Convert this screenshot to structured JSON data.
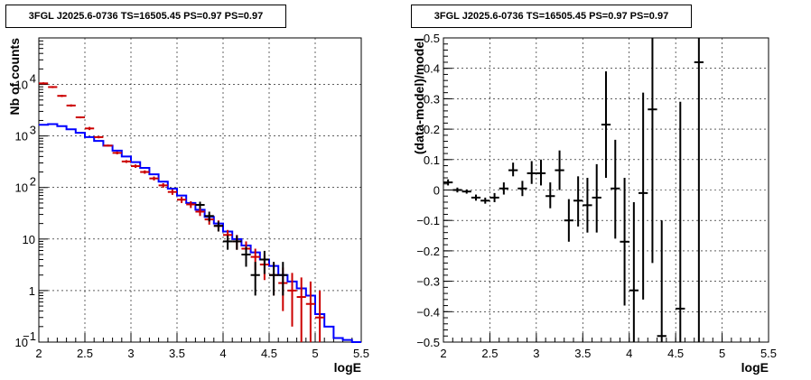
{
  "chart_data": [
    {
      "type": "line",
      "title": "3FGL J2025.6-0736 TS=16505.45 PS=0.97 PS=0.97",
      "xlabel": "logE",
      "ylabel": "Nb of counts",
      "xlim": [
        2,
        5.5
      ],
      "ylim": [
        0.1,
        80000
      ],
      "yscale": "log",
      "grid": true,
      "x_ticks": [
        "2",
        "2.5",
        "3",
        "3.5",
        "4",
        "4.5",
        "5",
        "5.5"
      ],
      "y_ticks": [
        {
          "value": 0.1,
          "label": "10",
          "exp": "−1"
        },
        {
          "value": 1,
          "label": "1",
          "exp": ""
        },
        {
          "value": 10,
          "label": "10",
          "exp": ""
        },
        {
          "value": 100,
          "label": "10",
          "exp": "2"
        },
        {
          "value": 1000,
          "label": "10",
          "exp": "3"
        },
        {
          "value": 10000,
          "label": "10",
          "exp": "4"
        }
      ],
      "bin_width": 0.1,
      "bin_centers": [
        2.05,
        2.15,
        2.25,
        2.35,
        2.45,
        2.55,
        2.65,
        2.75,
        2.85,
        2.95,
        3.05,
        3.15,
        3.25,
        3.35,
        3.45,
        3.55,
        3.65,
        3.75,
        3.85,
        3.95,
        4.05,
        4.15,
        4.25,
        4.35,
        4.45,
        4.55,
        4.65,
        4.75,
        4.85,
        4.95,
        5.05,
        5.15,
        5.25,
        5.35,
        5.45
      ],
      "series": [
        {
          "color": "#0000ff",
          "style": "histogram",
          "values": [
            1650,
            1700,
            1550,
            1350,
            1150,
            950,
            800,
            650,
            520,
            400,
            310,
            240,
            180,
            130,
            95,
            70,
            50,
            37,
            27,
            20,
            14,
            10,
            7.5,
            5.5,
            4,
            3,
            2,
            1.5,
            1.1,
            0.8,
            0.35,
            0.2,
            0.12,
            0.11,
            0.1
          ]
        },
        {
          "color": "#cc0000",
          "style": "error-bars",
          "values": [
            10500,
            8900,
            6000,
            3900,
            2300,
            1400,
            950,
            650,
            470,
            320,
            260,
            200,
            150,
            110,
            82,
            58,
            47,
            34,
            24,
            18,
            12,
            9,
            6.5,
            4.5,
            3.2,
            2,
            1.4,
            1,
            0.75,
            0.55,
            0.3
          ],
          "errors_low": [
            10000,
            8500,
            5700,
            3700,
            2200,
            1300,
            900,
            620,
            440,
            300,
            240,
            185,
            137,
            99,
            72,
            50,
            40,
            28,
            19,
            14,
            8.9,
            6.2,
            4,
            2.5,
            1.6,
            0.8,
            0.4,
            0.2,
            0.1,
            0.1,
            0.1
          ],
          "errors_high": [
            11000,
            9300,
            6300,
            4100,
            2400,
            1500,
            1000,
            680,
            500,
            340,
            280,
            215,
            163,
            121,
            92,
            66,
            54,
            40,
            29,
            23,
            15,
            12,
            9,
            6.5,
            5,
            3.5,
            2.8,
            2.2,
            1.8,
            1.5,
            1
          ]
        },
        {
          "color": "#000000",
          "style": "error-bars",
          "x": [
            3.75,
            3.85,
            3.95,
            4.05,
            4.15,
            4.25,
            4.35,
            4.45,
            4.55,
            4.65
          ],
          "values": [
            46,
            28,
            18,
            9,
            9,
            5,
            2,
            4,
            2,
            2
          ],
          "errors_low": [
            39,
            22,
            14,
            6.2,
            6.2,
            2.9,
            0.8,
            2.1,
            0.8,
            0.8
          ],
          "errors_high": [
            53,
            34,
            22,
            11.8,
            11.8,
            7.1,
            3.6,
            5.9,
            3.6,
            3.6
          ]
        }
      ]
    },
    {
      "type": "scatter",
      "title": "3FGL J2025.6-0736 TS=16505.45 PS=0.97 PS=0.97",
      "xlabel": "logE",
      "ylabel": "(data-model)/model",
      "xlim": [
        2,
        5.5
      ],
      "ylim": [
        -0.5,
        0.5
      ],
      "grid": true,
      "x_ticks": [
        "2",
        "2.5",
        "3",
        "3.5",
        "4",
        "4.5",
        "5",
        "5.5"
      ],
      "y_ticks": [
        "−0.5",
        "−0.4",
        "−0.3",
        "−0.2",
        "−0.1",
        "0",
        "0.1",
        "0.2",
        "0.3",
        "0.4",
        "0.5"
      ],
      "points": [
        {
          "x": 2.05,
          "y": 0.025,
          "lo": 0.015,
          "hi": 0.035
        },
        {
          "x": 2.15,
          "y": 0.0,
          "lo": -0.008,
          "hi": 0.008
        },
        {
          "x": 2.25,
          "y": -0.005,
          "lo": -0.012,
          "hi": 0.002
        },
        {
          "x": 2.35,
          "y": -0.025,
          "lo": -0.035,
          "hi": -0.015
        },
        {
          "x": 2.45,
          "y": -0.035,
          "lo": -0.045,
          "hi": -0.025
        },
        {
          "x": 2.55,
          "y": -0.025,
          "lo": -0.04,
          "hi": -0.01
        },
        {
          "x": 2.65,
          "y": 0.005,
          "lo": -0.015,
          "hi": 0.025
        },
        {
          "x": 2.75,
          "y": 0.065,
          "lo": 0.045,
          "hi": 0.09
        },
        {
          "x": 2.85,
          "y": 0.005,
          "lo": -0.02,
          "hi": 0.03
        },
        {
          "x": 2.95,
          "y": 0.055,
          "lo": 0.02,
          "hi": 0.095
        },
        {
          "x": 3.05,
          "y": 0.055,
          "lo": 0.015,
          "hi": 0.1
        },
        {
          "x": 3.15,
          "y": -0.02,
          "lo": -0.06,
          "hi": 0.025
        },
        {
          "x": 3.25,
          "y": 0.065,
          "lo": 0.0,
          "hi": 0.13
        },
        {
          "x": 3.35,
          "y": -0.1,
          "lo": -0.17,
          "hi": -0.03
        },
        {
          "x": 3.45,
          "y": -0.035,
          "lo": -0.12,
          "hi": 0.045
        },
        {
          "x": 3.55,
          "y": -0.05,
          "lo": -0.14,
          "hi": 0.04
        },
        {
          "x": 3.65,
          "y": -0.025,
          "lo": -0.14,
          "hi": 0.085
        },
        {
          "x": 3.75,
          "y": 0.215,
          "lo": 0.04,
          "hi": 0.39
        },
        {
          "x": 3.85,
          "y": 0.005,
          "lo": -0.16,
          "hi": 0.165
        },
        {
          "x": 3.95,
          "y": -0.17,
          "lo": -0.38,
          "hi": 0.04
        },
        {
          "x": 4.05,
          "y": -0.33,
          "lo": -0.5,
          "hi": -0.04
        },
        {
          "x": 4.15,
          "y": -0.01,
          "lo": -0.36,
          "hi": 0.32
        },
        {
          "x": 4.25,
          "y": 0.265,
          "lo": -0.24,
          "hi": 0.5
        },
        {
          "x": 4.35,
          "y": -0.48,
          "lo": -0.5,
          "hi": -0.1
        },
        {
          "x": 4.55,
          "y": -0.39,
          "lo": -0.5,
          "hi": 0.29
        },
        {
          "x": 4.75,
          "y": 0.42,
          "lo": -0.5,
          "hi": 0.5
        }
      ]
    }
  ]
}
